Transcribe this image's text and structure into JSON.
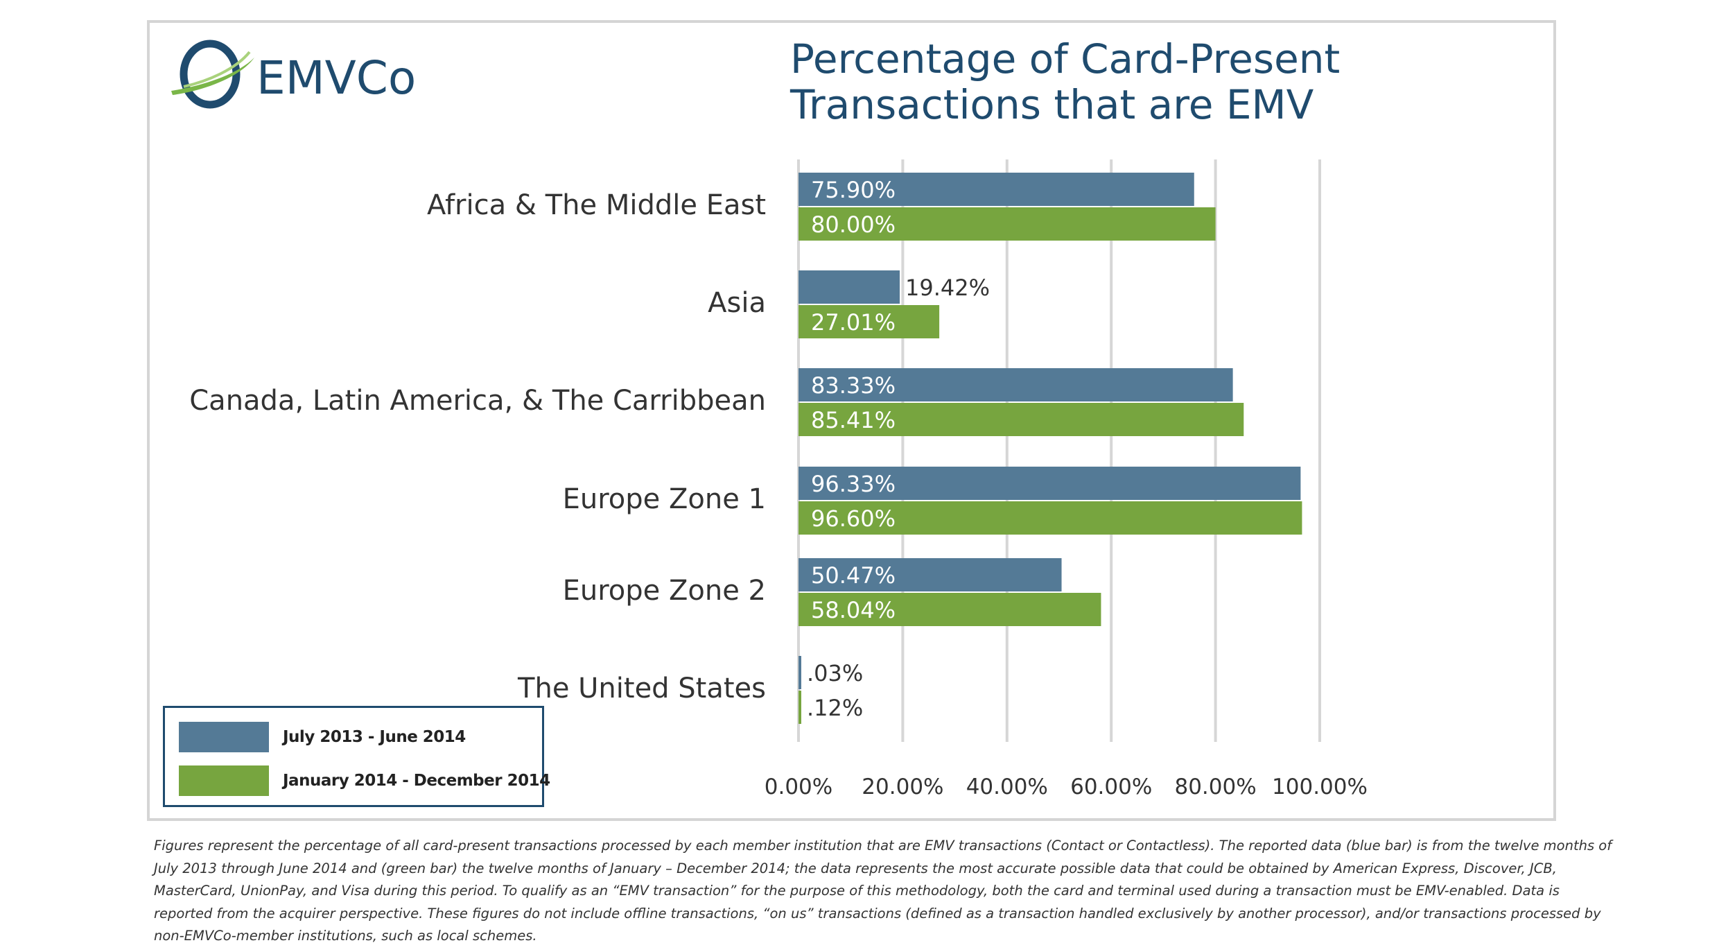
{
  "brand": {
    "name": "EMVCo",
    "primary_color": "#1f4b6e",
    "accent_color": "#7ab648"
  },
  "title_lines": [
    "Percentage of Card-Present",
    "Transactions that are EMV"
  ],
  "legend": {
    "items": [
      {
        "label": "July 2013 - June 2014",
        "color": "#547a96"
      },
      {
        "label": "January  2014 - December 2014",
        "color": "#77a53f"
      }
    ]
  },
  "chart_data": {
    "type": "bar",
    "orientation": "horizontal",
    "title": "Percentage of Card-Present Transactions that are EMV",
    "categories": [
      "Africa & The Middle East",
      "Asia",
      "Canada, Latin America, & The Carribbean",
      "Europe Zone 1",
      "Europe Zone 2",
      "The United States"
    ],
    "series": [
      {
        "name": "July 2013 - June 2014",
        "color": "#547a96",
        "values": [
          75.9,
          19.42,
          83.33,
          96.33,
          50.47,
          0.03
        ],
        "labels": [
          "75.90%",
          "19.42%",
          "83.33%",
          "96.33%",
          "50.47%",
          ".03%"
        ]
      },
      {
        "name": "January  2014 - December 2014",
        "color": "#77a53f",
        "values": [
          80.0,
          27.01,
          85.41,
          96.6,
          58.04,
          0.12
        ],
        "labels": [
          "80.00%",
          "27.01%",
          "85.41%",
          "96.60%",
          "58.04%",
          ".12%"
        ]
      }
    ],
    "xlim": [
      0,
      100
    ],
    "x_ticks": [
      0,
      20,
      40,
      60,
      80,
      100
    ],
    "x_tick_labels": [
      "0.00%",
      "20.00%",
      "40.00%",
      "60.00%",
      "80.00%",
      "100.00%"
    ],
    "grid": "vertical",
    "legend_position": "bottom-left"
  },
  "footnote_lines": [
    "Figures represent the percentage of all card-present transactions processed by each member institution that are EMV transactions (Contact or Contactless).  The reported data (blue bar) is from the twelve months of",
    "July 2013 through June 2014 and (green bar) the twelve months of January – December 2014; the data represents the most accurate possible data that could be obtained by American Express, Discover, JCB,",
    "MasterCard, UnionPay, and Visa during this period.  To qualify as an “EMV transaction” for the purpose of this methodology, both the card and terminal used during a transaction must be EMV-enabled.  Data is",
    "reported from the acquirer perspective.  These figures do not include offline transactions, “on us” transactions (defined as a transaction handled exclusively by another processor), and/or transactions processed by",
    "non-EMVCo-member institutions, such as local schemes."
  ]
}
